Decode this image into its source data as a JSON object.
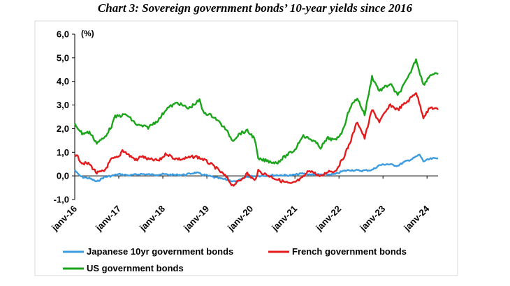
{
  "chart_data": {
    "type": "line",
    "title": "Chart 3: Sovereign government bonds’ 10-year yields since 2016",
    "ylabel": "(%)",
    "ylim": [
      -1.0,
      6.0
    ],
    "yticks": [
      "-1,0",
      "0,0",
      "1,0",
      "2,0",
      "3,0",
      "4,0",
      "5,0",
      "6,0"
    ],
    "xlim": [
      "2016-01",
      "2024-04"
    ],
    "xticks": [
      "janv-16",
      "janv-17",
      "janv-18",
      "janv-19",
      "janv-20",
      "janv-21",
      "janv-22",
      "janv-23",
      "janv-24"
    ],
    "grid": false,
    "legend_position": "bottom",
    "series": [
      {
        "name": "Japanese 10yr government bonds",
        "color": "#3d9be0",
        "points": [
          [
            "2016-01",
            0.25
          ],
          [
            "2016-02",
            0.05
          ],
          [
            "2016-03",
            -0.05
          ],
          [
            "2016-05",
            -0.1
          ],
          [
            "2016-07",
            -0.25
          ],
          [
            "2016-09",
            -0.05
          ],
          [
            "2016-11",
            0.0
          ],
          [
            "2017-01",
            0.07
          ],
          [
            "2017-04",
            0.02
          ],
          [
            "2017-07",
            0.08
          ],
          [
            "2017-10",
            0.05
          ],
          [
            "2018-01",
            0.07
          ],
          [
            "2018-04",
            0.04
          ],
          [
            "2018-07",
            0.05
          ],
          [
            "2018-10",
            0.14
          ],
          [
            "2018-12",
            0.05
          ],
          [
            "2019-03",
            -0.06
          ],
          [
            "2019-06",
            -0.15
          ],
          [
            "2019-09",
            -0.25
          ],
          [
            "2019-12",
            -0.03
          ],
          [
            "2020-03",
            0.0
          ],
          [
            "2020-06",
            0.02
          ],
          [
            "2020-09",
            0.03
          ],
          [
            "2020-12",
            0.02
          ],
          [
            "2021-03",
            0.1
          ],
          [
            "2021-06",
            0.05
          ],
          [
            "2021-09",
            0.05
          ],
          [
            "2021-12",
            0.07
          ],
          [
            "2022-02",
            0.2
          ],
          [
            "2022-04",
            0.25
          ],
          [
            "2022-07",
            0.22
          ],
          [
            "2022-10",
            0.25
          ],
          [
            "2022-12",
            0.45
          ],
          [
            "2023-02",
            0.5
          ],
          [
            "2023-05",
            0.43
          ],
          [
            "2023-07",
            0.6
          ],
          [
            "2023-09",
            0.72
          ],
          [
            "2023-11",
            0.9
          ],
          [
            "2023-12",
            0.62
          ],
          [
            "2024-02",
            0.72
          ],
          [
            "2024-04",
            0.75
          ]
        ]
      },
      {
        "name": "French government bonds",
        "color": "#e41a1c",
        "points": [
          [
            "2016-01",
            0.95
          ],
          [
            "2016-03",
            0.55
          ],
          [
            "2016-05",
            0.5
          ],
          [
            "2016-07",
            0.12
          ],
          [
            "2016-09",
            0.2
          ],
          [
            "2016-11",
            0.7
          ],
          [
            "2017-01",
            0.8
          ],
          [
            "2017-02",
            1.1
          ],
          [
            "2017-04",
            0.85
          ],
          [
            "2017-06",
            0.65
          ],
          [
            "2017-07",
            0.85
          ],
          [
            "2017-09",
            0.7
          ],
          [
            "2017-12",
            0.65
          ],
          [
            "2018-02",
            0.95
          ],
          [
            "2018-04",
            0.75
          ],
          [
            "2018-06",
            0.7
          ],
          [
            "2018-09",
            0.8
          ],
          [
            "2018-10",
            0.82
          ],
          [
            "2018-12",
            0.7
          ],
          [
            "2019-03",
            0.4
          ],
          [
            "2019-06",
            0.0
          ],
          [
            "2019-08",
            -0.4
          ],
          [
            "2019-10",
            -0.2
          ],
          [
            "2019-12",
            0.1
          ],
          [
            "2020-02",
            -0.2
          ],
          [
            "2020-03",
            0.2
          ],
          [
            "2020-06",
            0.0
          ],
          [
            "2020-09",
            -0.2
          ],
          [
            "2020-12",
            -0.35
          ],
          [
            "2021-03",
            -0.1
          ],
          [
            "2021-05",
            0.25
          ],
          [
            "2021-08",
            -0.05
          ],
          [
            "2021-10",
            0.2
          ],
          [
            "2021-12",
            0.2
          ],
          [
            "2022-02",
            0.7
          ],
          [
            "2022-04",
            1.4
          ],
          [
            "2022-06",
            2.3
          ],
          [
            "2022-08",
            1.6
          ],
          [
            "2022-10",
            2.8
          ],
          [
            "2022-12",
            2.3
          ],
          [
            "2023-03",
            3.0
          ],
          [
            "2023-05",
            2.8
          ],
          [
            "2023-08",
            3.2
          ],
          [
            "2023-10",
            3.55
          ],
          [
            "2023-12",
            2.5
          ],
          [
            "2024-02",
            2.9
          ],
          [
            "2024-04",
            2.8
          ]
        ]
      },
      {
        "name": "US government bonds",
        "color": "#1aa51a",
        "points": [
          [
            "2016-01",
            2.2
          ],
          [
            "2016-03",
            1.8
          ],
          [
            "2016-05",
            1.85
          ],
          [
            "2016-07",
            1.4
          ],
          [
            "2016-09",
            1.6
          ],
          [
            "2016-11",
            2.1
          ],
          [
            "2016-12",
            2.5
          ],
          [
            "2017-03",
            2.6
          ],
          [
            "2017-06",
            2.15
          ],
          [
            "2017-09",
            2.05
          ],
          [
            "2017-12",
            2.4
          ],
          [
            "2018-02",
            2.85
          ],
          [
            "2018-05",
            3.1
          ],
          [
            "2018-08",
            2.85
          ],
          [
            "2018-11",
            3.2
          ],
          [
            "2018-12",
            2.7
          ],
          [
            "2019-03",
            2.5
          ],
          [
            "2019-06",
            2.0
          ],
          [
            "2019-08",
            1.5
          ],
          [
            "2019-10",
            1.8
          ],
          [
            "2019-12",
            1.9
          ],
          [
            "2020-02",
            1.6
          ],
          [
            "2020-03",
            0.7
          ],
          [
            "2020-05",
            0.65
          ],
          [
            "2020-08",
            0.55
          ],
          [
            "2020-11",
            0.9
          ],
          [
            "2021-01",
            1.1
          ],
          [
            "2021-03",
            1.7
          ],
          [
            "2021-06",
            1.5
          ],
          [
            "2021-08",
            1.2
          ],
          [
            "2021-10",
            1.6
          ],
          [
            "2021-12",
            1.5
          ],
          [
            "2022-02",
            1.9
          ],
          [
            "2022-04",
            2.9
          ],
          [
            "2022-06",
            3.3
          ],
          [
            "2022-08",
            2.6
          ],
          [
            "2022-10",
            4.2
          ],
          [
            "2022-12",
            3.6
          ],
          [
            "2023-03",
            3.9
          ],
          [
            "2023-05",
            3.4
          ],
          [
            "2023-08",
            4.2
          ],
          [
            "2023-10",
            4.95
          ],
          [
            "2023-12",
            3.85
          ],
          [
            "2024-02",
            4.3
          ],
          [
            "2024-04",
            4.3
          ]
        ]
      }
    ]
  }
}
